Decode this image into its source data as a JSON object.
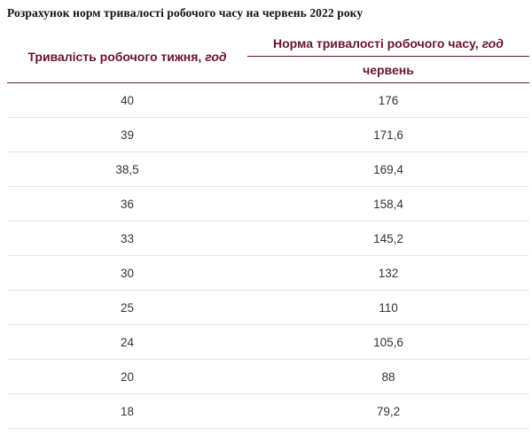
{
  "page": {
    "title": "Розрахунок норм тривалості робочого часу на червень 2022 року"
  },
  "table": {
    "col1_header": {
      "label": "Тривалість робочого тижня, ",
      "unit": "год"
    },
    "col2_header": {
      "label": "Норма тривалості робочого часу, ",
      "unit": "год"
    },
    "col2_subheader": "червень",
    "rows": [
      {
        "week": "40",
        "norm": "176"
      },
      {
        "week": "39",
        "norm": "171,6"
      },
      {
        "week": "38,5",
        "norm": "169,4"
      },
      {
        "week": "36",
        "norm": "158,4"
      },
      {
        "week": "33",
        "norm": "145,2"
      },
      {
        "week": "30",
        "norm": "132"
      },
      {
        "week": "25",
        "norm": "110"
      },
      {
        "week": "24",
        "norm": "105,6"
      },
      {
        "week": "20",
        "norm": "88"
      },
      {
        "week": "18",
        "norm": "79,2"
      }
    ]
  },
  "colors": {
    "accent_maroon": "#6b1233",
    "row_divider": "#e5e5e5",
    "body_text": "#333333",
    "title_text": "#111111"
  }
}
